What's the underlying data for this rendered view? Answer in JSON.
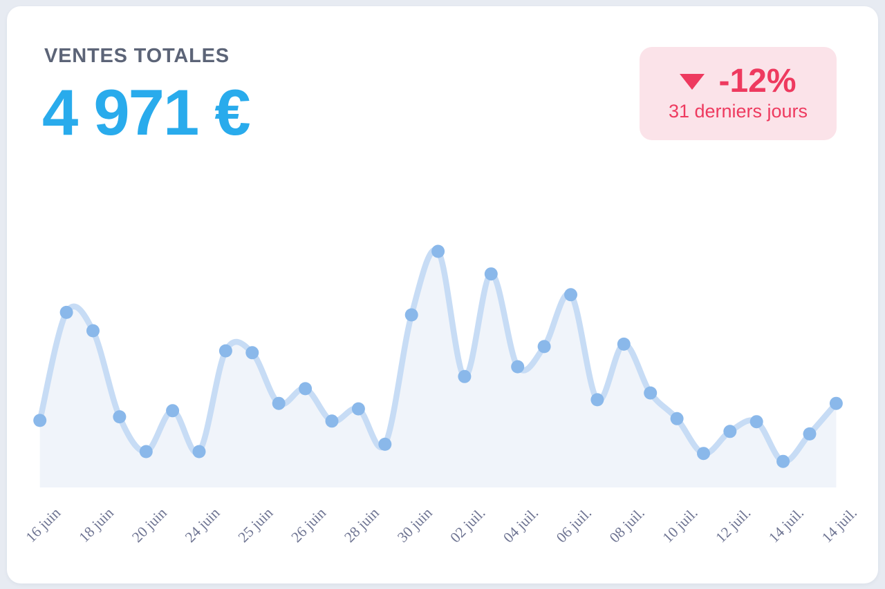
{
  "card": {
    "title": "VENTES TOTALES",
    "value": "4 971 €",
    "badge": {
      "delta": "-12%",
      "period": "31 derniers jours",
      "icon": "triangle-down"
    }
  },
  "colors": {
    "page_background": "#e7ebf2",
    "card_background": "#ffffff",
    "title_text": "#5c6477",
    "value_accent": "#29abec",
    "badge_background": "#fbe3e9",
    "badge_accent": "#ee3a5f"
  },
  "chart_data": {
    "type": "area",
    "title": "VENTES TOTALES",
    "n_points": 31,
    "series": [
      {
        "name": "ventes-totales",
        "values": [
          103,
          280,
          250,
          109,
          52,
          119,
          52,
          217,
          214,
          131,
          155,
          102,
          122,
          64,
          276,
          380,
          175,
          343,
          191,
          224,
          309,
          137,
          228,
          148,
          106,
          49,
          85,
          101,
          36,
          81,
          131
        ]
      }
    ],
    "x_tick_labels": [
      "16 juin",
      "18 juin",
      "20 juin",
      "24 juin",
      "25 juin",
      "26 juin",
      "28 juin",
      "30 juin",
      "02 juil.",
      "04 juil.",
      "06 juil.",
      "08 juil.",
      "10 juil.",
      "12 juil.",
      "14 juil.",
      "14 juil."
    ],
    "tick_every": 2,
    "x_tick_rotation": -45,
    "ylim": [
      0,
      400
    ],
    "y_axis_visible": false,
    "grid": false,
    "legend": false,
    "colors": {
      "line": "#c7dcf5",
      "dot": "#8ab8ea",
      "fill": "#f0f4fa",
      "tick_label": "#6e7492"
    }
  }
}
